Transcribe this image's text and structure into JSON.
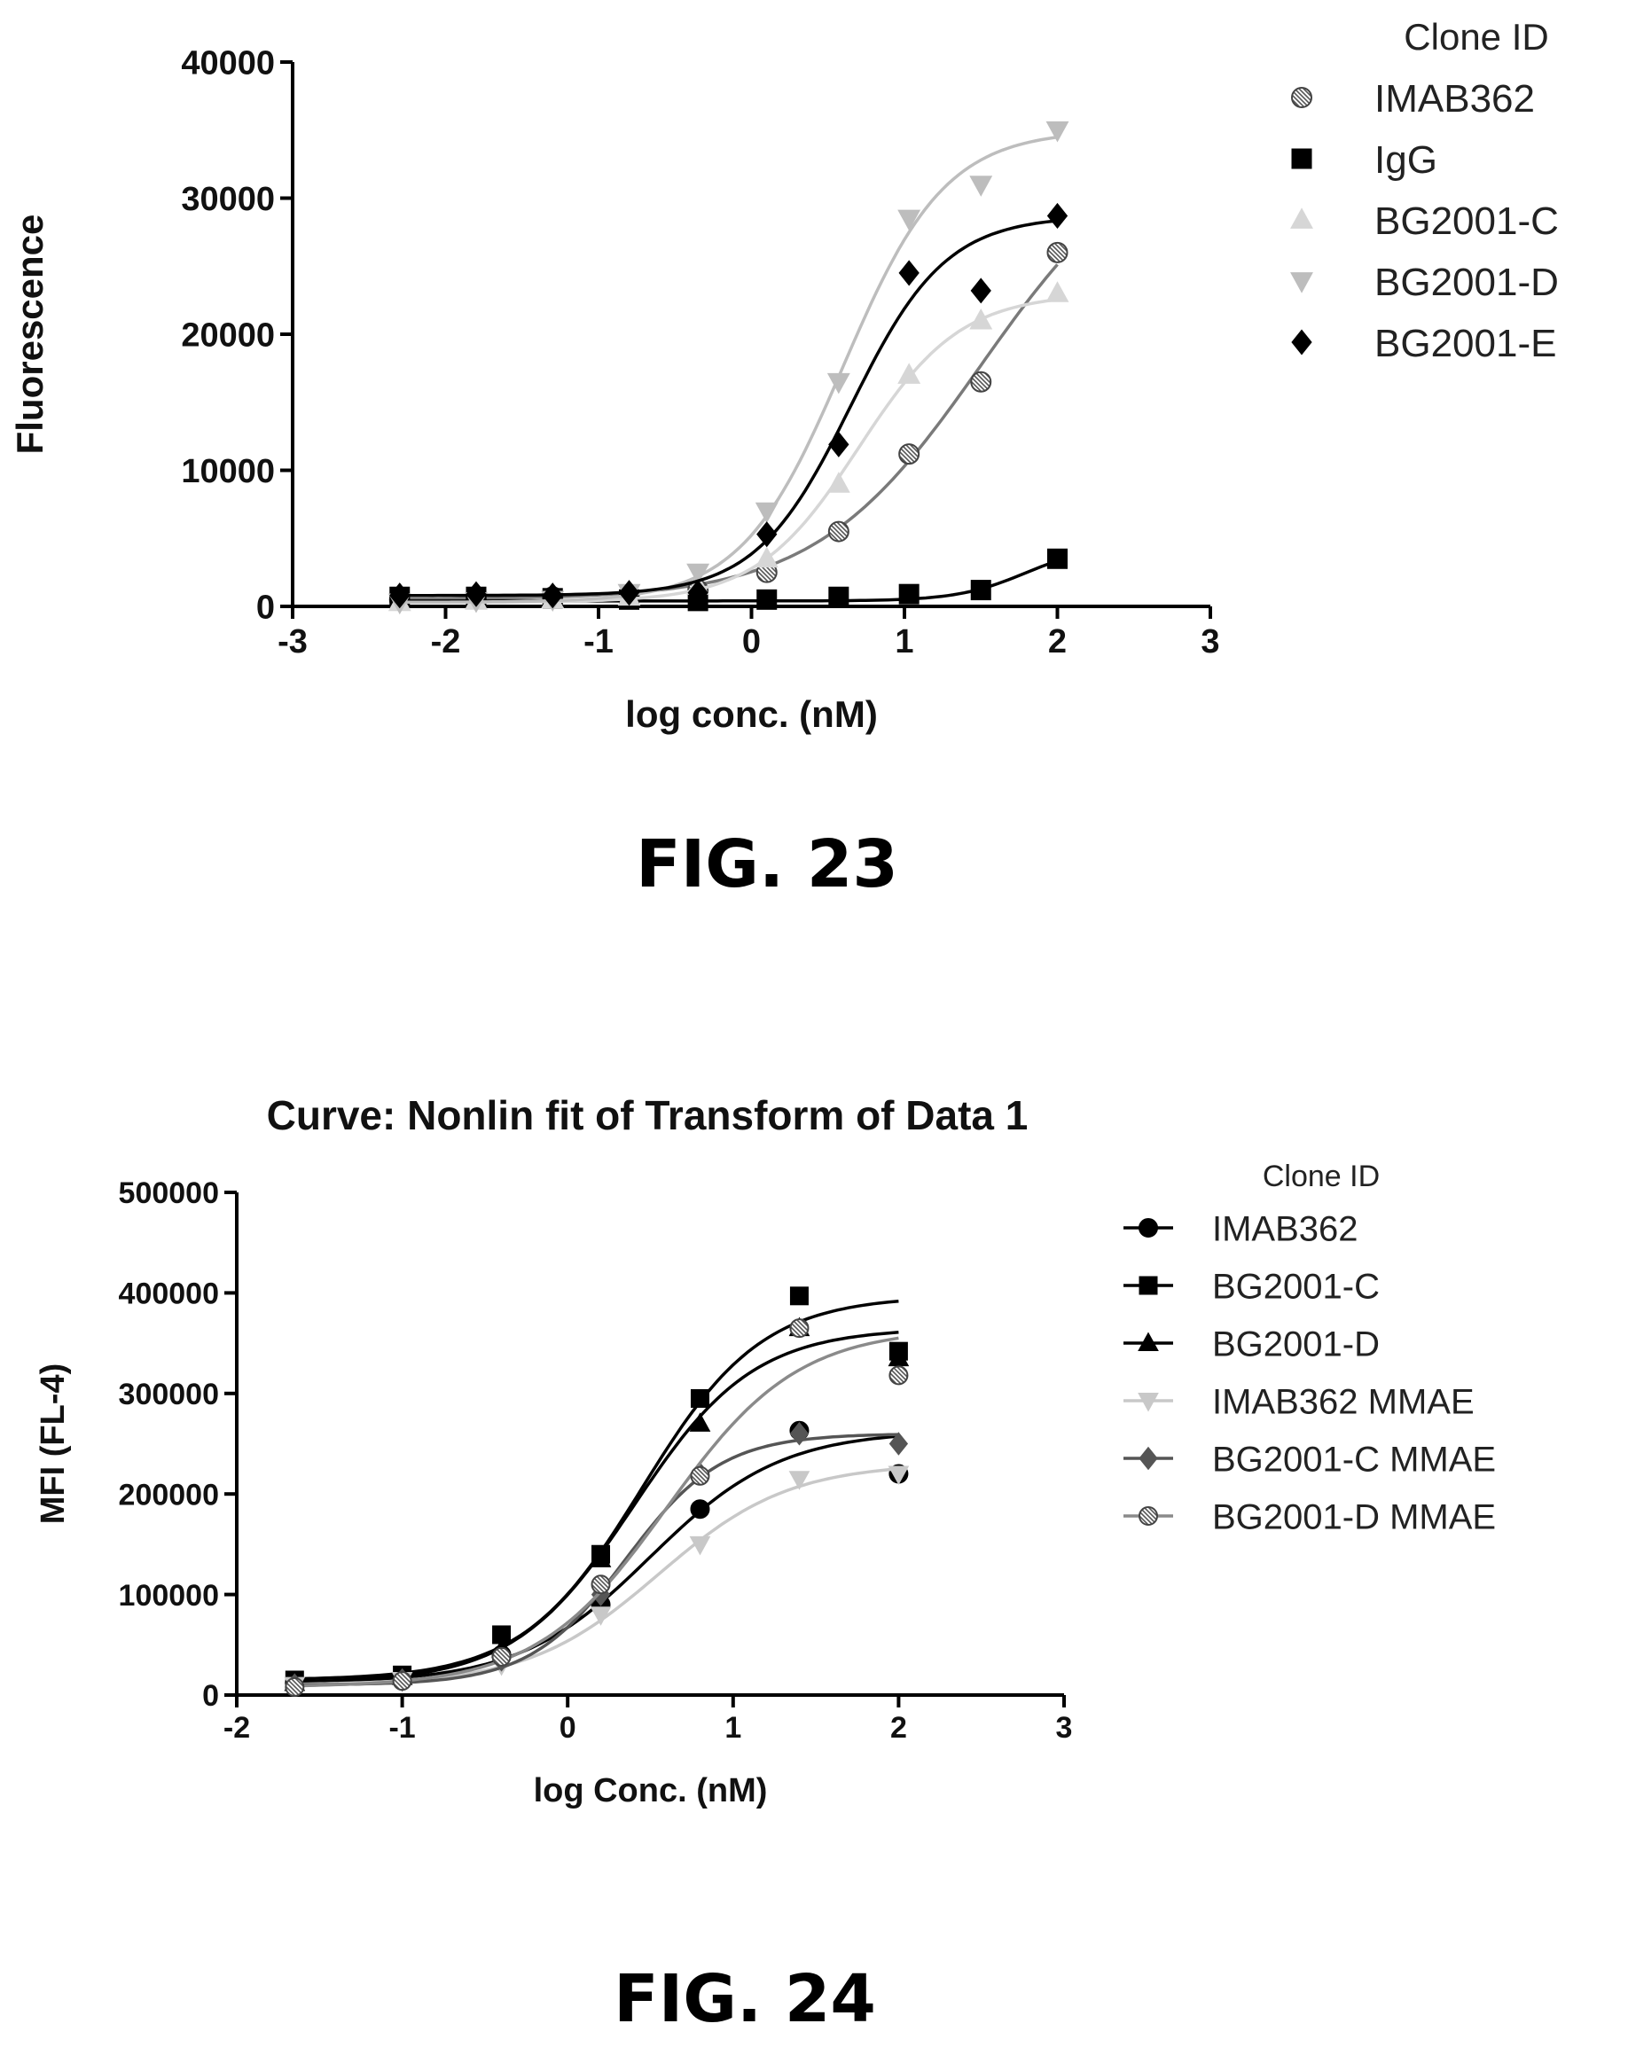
{
  "figures": {
    "fig23_label": "FIG. 23",
    "fig24_label": "FIG. 24"
  },
  "chart_data": [
    {
      "type": "scatter",
      "title": "",
      "xlabel": "log conc. (nM)",
      "ylabel": "Fluorescence",
      "xlim": [
        -3,
        3
      ],
      "ylim": [
        0,
        40000
      ],
      "xticks": [
        "-3",
        "-2",
        "-1",
        "0",
        "1",
        "2",
        "3"
      ],
      "yticks": [
        "0",
        "10000",
        "20000",
        "30000",
        "40000"
      ],
      "legend_title": "Clone ID",
      "legend_position": "right",
      "grid": false,
      "x": [
        -2.3,
        -1.8,
        -1.3,
        -0.8,
        -0.35,
        0.1,
        0.57,
        1.03,
        1.5,
        2.0
      ],
      "series": [
        {
          "name": "IMAB362",
          "marker": "circle-hatched",
          "color": "#7a7a7a",
          "values": [
            500,
            600,
            700,
            800,
            1200,
            2500,
            5500,
            11200,
            16500,
            26000
          ]
        },
        {
          "name": "IgG",
          "marker": "square",
          "color": "#000000",
          "values": [
            700,
            700,
            600,
            500,
            400,
            500,
            700,
            900,
            1200,
            3500
          ]
        },
        {
          "name": "BG2001-C",
          "marker": "triangle-up",
          "color": "#d6d6d6",
          "values": [
            300,
            400,
            500,
            700,
            1500,
            3500,
            9000,
            17000,
            21000,
            23000
          ]
        },
        {
          "name": "BG2001-D",
          "marker": "triangle-down",
          "color": "#bdbdbd",
          "values": [
            300,
            400,
            500,
            1000,
            2500,
            7000,
            16500,
            28500,
            31000,
            35000
          ]
        },
        {
          "name": "BG2001-E",
          "marker": "diamond",
          "color": "#000000",
          "values": [
            800,
            900,
            800,
            1000,
            1000,
            5300,
            11900,
            24500,
            23200,
            28700
          ]
        }
      ]
    },
    {
      "type": "line",
      "title": "Curve: Nonlin fit of Transform of Data 1",
      "xlabel": "log Conc. (nM)",
      "ylabel": "MFI (FL-4)",
      "xlim": [
        -2,
        3
      ],
      "ylim": [
        0,
        500000
      ],
      "xticks": [
        "-2",
        "-1",
        "0",
        "1",
        "2",
        "3"
      ],
      "yticks": [
        "0",
        "100000",
        "200000",
        "300000",
        "400000",
        "500000"
      ],
      "legend_title": "Clone ID",
      "legend_position": "right",
      "grid": false,
      "x": [
        -1.65,
        -1.0,
        -0.4,
        0.2,
        0.8,
        1.4,
        2.0
      ],
      "series": [
        {
          "name": "IMAB362",
          "marker": "circle",
          "color": "#000000",
          "values": [
            12000,
            18000,
            40000,
            90000,
            185000,
            263000,
            220000
          ]
        },
        {
          "name": "BG2001-C",
          "marker": "square",
          "color": "#000000",
          "values": [
            15000,
            20000,
            60000,
            140000,
            295000,
            397000,
            342000
          ]
        },
        {
          "name": "BG2001-D",
          "marker": "triangle-up",
          "color": "#000000",
          "values": [
            12000,
            18000,
            45000,
            135000,
            270000,
            365000,
            335000
          ]
        },
        {
          "name": "IMAB362 MMAE",
          "marker": "triangle-down",
          "color": "#c8c8c8",
          "values": [
            10000,
            15000,
            30000,
            80000,
            150000,
            215000,
            220000
          ]
        },
        {
          "name": "BG2001-C MMAE",
          "marker": "diamond",
          "color": "#555555",
          "values": [
            10000,
            15000,
            35000,
            100000,
            220000,
            260000,
            250000
          ]
        },
        {
          "name": "BG2001-D  MMAE",
          "marker": "circle-hatched",
          "color": "#8a8a8a",
          "values": [
            8000,
            14000,
            38000,
            110000,
            218000,
            365000,
            318000
          ]
        }
      ]
    }
  ]
}
